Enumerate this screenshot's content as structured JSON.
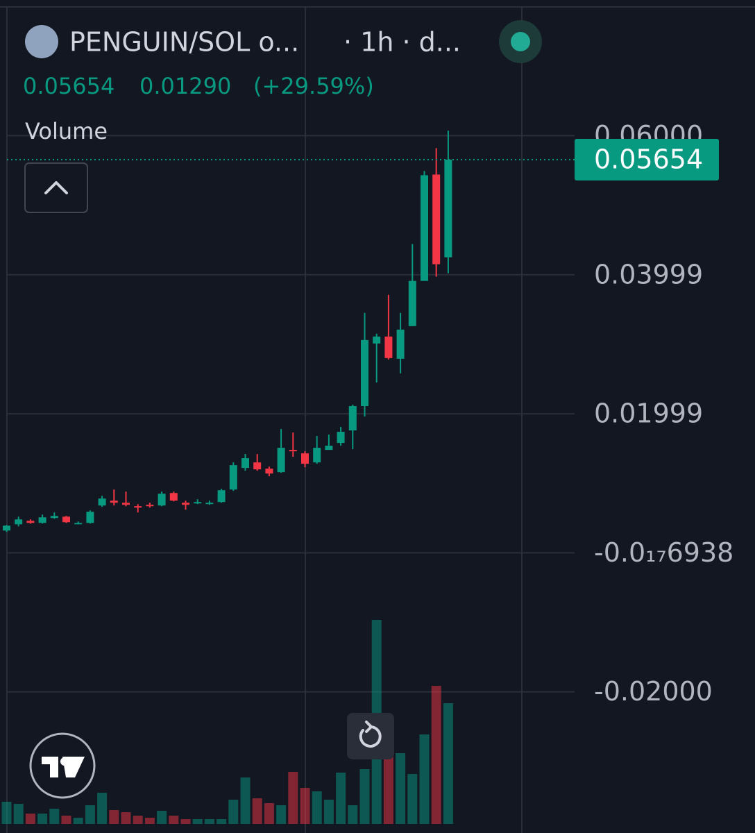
{
  "header": {
    "symbol": "PENGUIN/SOL o...",
    "interval": "· 1h · d...",
    "change": "0.01290",
    "change_percent": "(+29.59%)",
    "pane_label": "Volume"
  },
  "chart_data": {
    "type": "candlestick",
    "open": [
      0.0032,
      0.0041,
      0.0046,
      0.0043,
      0.005,
      0.0052,
      0.0042,
      0.0043,
      0.0068,
      0.0075,
      0.0072,
      0.0067,
      0.0069,
      0.0068,
      0.0086,
      0.0072,
      0.0071,
      0.0071,
      0.0073,
      0.0091,
      0.0122,
      0.013,
      0.0121,
      0.0116,
      0.0148,
      0.0143,
      0.013,
      0.0148,
      0.0158,
      0.0176,
      0.0211,
      0.0301,
      0.0311,
      0.0279,
      0.0326,
      0.0391,
      0.0544,
      0.0425
    ],
    "high": [
      0.004,
      0.0052,
      0.0048,
      0.0055,
      0.0058,
      0.0053,
      0.0045,
      0.0061,
      0.0082,
      0.0091,
      0.0088,
      0.007,
      0.0072,
      0.0088,
      0.0088,
      0.0075,
      0.0077,
      0.0075,
      0.0092,
      0.013,
      0.0142,
      0.0142,
      0.0124,
      0.0178,
      0.0173,
      0.0146,
      0.0168,
      0.017,
      0.0181,
      0.0213,
      0.0345,
      0.0315,
      0.0371,
      0.0345,
      0.0444,
      0.0549,
      0.0582,
      0.0607
    ],
    "low": [
      0.003,
      0.0038,
      0.0042,
      0.0042,
      0.0049,
      0.0043,
      0.0041,
      0.0042,
      0.0066,
      0.0068,
      0.0067,
      0.0058,
      0.0065,
      0.0067,
      0.0074,
      0.0062,
      0.007,
      0.0069,
      0.0072,
      0.0089,
      0.0118,
      0.0118,
      0.011,
      0.0115,
      0.0138,
      0.0123,
      0.0128,
      0.0148,
      0.0154,
      0.0149,
      0.0196,
      0.0245,
      0.0278,
      0.0258,
      0.0326,
      0.0391,
      0.0397,
      0.0402
    ],
    "close": [
      0.0039,
      0.0048,
      0.0043,
      0.0051,
      0.0053,
      0.0044,
      0.0043,
      0.0059,
      0.0078,
      0.0072,
      0.0069,
      0.0066,
      0.0067,
      0.0085,
      0.0075,
      0.0069,
      0.0073,
      0.0072,
      0.009,
      0.0126,
      0.0136,
      0.012,
      0.0114,
      0.0151,
      0.0146,
      0.0128,
      0.0151,
      0.0154,
      0.0174,
      0.0211,
      0.0306,
      0.0311,
      0.028,
      0.0321,
      0.0391,
      0.0543,
      0.0415,
      0.05654
    ],
    "volume": [
      32,
      29,
      15,
      15,
      22,
      12,
      9,
      27,
      45,
      20,
      17,
      12,
      9,
      19,
      12,
      7,
      7,
      7,
      7,
      35,
      67,
      37,
      30,
      27,
      75,
      52,
      47,
      35,
      74,
      27,
      79,
      294,
      122,
      102,
      72,
      129,
      199,
      174
    ],
    "up_color": "#089981",
    "down_color": "#f23645",
    "ylim": [
      -0.0388,
      0.0785
    ],
    "yticks": [
      {
        "value": 0.06,
        "label": "0.06000"
      },
      0.03999,
      0.01999,
      {
        "value": -6.938e-18,
        "label": "-0.0₁₇6938"
      },
      {
        "value": -0.02,
        "label": "-0.02000"
      }
    ],
    "grid": true
  }
}
